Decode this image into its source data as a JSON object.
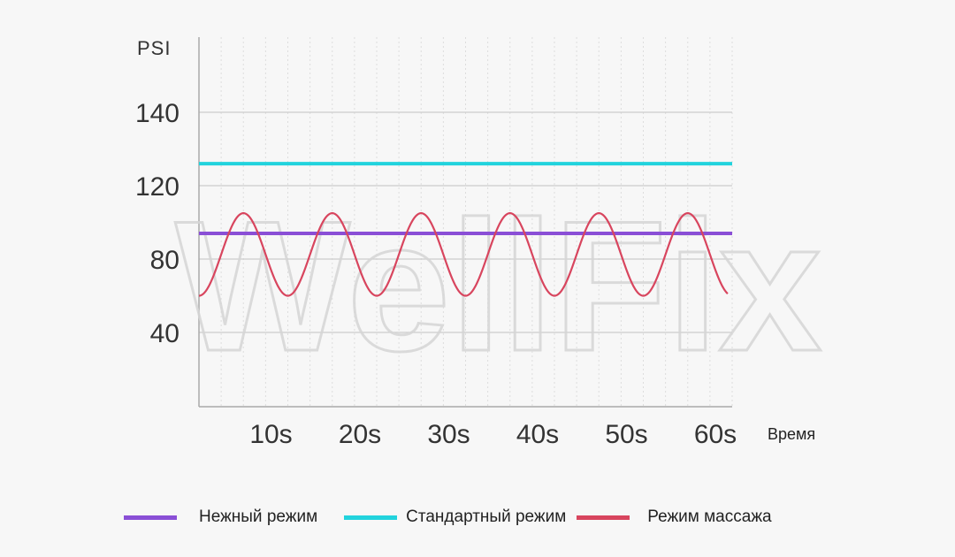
{
  "chart_data": {
    "type": "line",
    "ylabel": "PSI",
    "xlabel": "Время",
    "yticks": [
      {
        "value": 40,
        "label": "40"
      },
      {
        "value": 80,
        "label": "80"
      },
      {
        "value": 120,
        "label": "120"
      },
      {
        "value": 140,
        "label": "140"
      }
    ],
    "xticks": [
      {
        "value": 10,
        "label": "10s"
      },
      {
        "value": 20,
        "label": "20s"
      },
      {
        "value": 30,
        "label": "30s"
      },
      {
        "value": 40,
        "label": "40s"
      },
      {
        "value": 50,
        "label": "50s"
      },
      {
        "value": 60,
        "label": "60s"
      }
    ],
    "xlim": [
      0,
      60
    ],
    "series": [
      {
        "name": "Нежный режим",
        "color": "#8a4fd6",
        "constant": 94
      },
      {
        "name": "Стандартный режим",
        "color": "#22d3dd",
        "constant": 126
      },
      {
        "name": "Режим массажа",
        "color": "#d8455e",
        "oscillation": {
          "min": 60,
          "max": 105,
          "period_s": 10,
          "start_s": 0,
          "end_s": 60
        }
      }
    ],
    "grid": true,
    "legend_position": "bottom"
  },
  "watermark": "WellFix"
}
